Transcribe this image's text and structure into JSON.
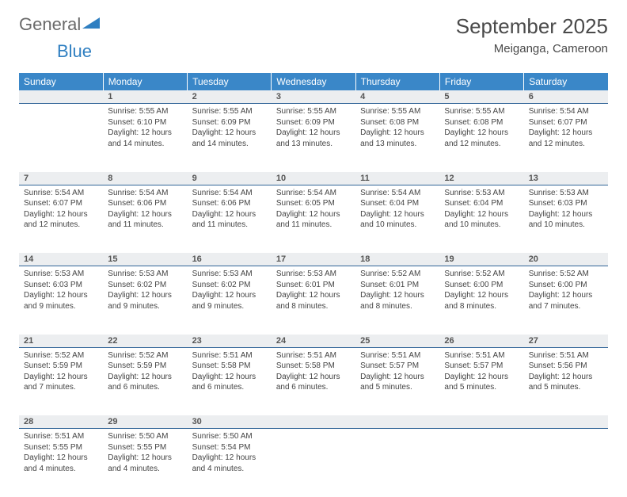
{
  "brand": {
    "general": "General",
    "blue": "Blue"
  },
  "title": "September 2025",
  "subtitle": "Meiganga, Cameroon",
  "colors": {
    "header_bg": "#3a87c8",
    "header_text": "#ffffff",
    "daynum_bg": "#eceef0",
    "daynum_border": "#336699",
    "text": "#444444",
    "title_color": "#4a4a4a",
    "logo_gray": "#6a6a6a",
    "logo_blue": "#2f7fc1"
  },
  "weekdays": [
    "Sunday",
    "Monday",
    "Tuesday",
    "Wednesday",
    "Thursday",
    "Friday",
    "Saturday"
  ],
  "weeks": [
    [
      null,
      {
        "n": "1",
        "sr": "Sunrise: 5:55 AM",
        "ss": "Sunset: 6:10 PM",
        "dl": "Daylight: 12 hours and 14 minutes."
      },
      {
        "n": "2",
        "sr": "Sunrise: 5:55 AM",
        "ss": "Sunset: 6:09 PM",
        "dl": "Daylight: 12 hours and 14 minutes."
      },
      {
        "n": "3",
        "sr": "Sunrise: 5:55 AM",
        "ss": "Sunset: 6:09 PM",
        "dl": "Daylight: 12 hours and 13 minutes."
      },
      {
        "n": "4",
        "sr": "Sunrise: 5:55 AM",
        "ss": "Sunset: 6:08 PM",
        "dl": "Daylight: 12 hours and 13 minutes."
      },
      {
        "n": "5",
        "sr": "Sunrise: 5:55 AM",
        "ss": "Sunset: 6:08 PM",
        "dl": "Daylight: 12 hours and 12 minutes."
      },
      {
        "n": "6",
        "sr": "Sunrise: 5:54 AM",
        "ss": "Sunset: 6:07 PM",
        "dl": "Daylight: 12 hours and 12 minutes."
      }
    ],
    [
      {
        "n": "7",
        "sr": "Sunrise: 5:54 AM",
        "ss": "Sunset: 6:07 PM",
        "dl": "Daylight: 12 hours and 12 minutes."
      },
      {
        "n": "8",
        "sr": "Sunrise: 5:54 AM",
        "ss": "Sunset: 6:06 PM",
        "dl": "Daylight: 12 hours and 11 minutes."
      },
      {
        "n": "9",
        "sr": "Sunrise: 5:54 AM",
        "ss": "Sunset: 6:06 PM",
        "dl": "Daylight: 12 hours and 11 minutes."
      },
      {
        "n": "10",
        "sr": "Sunrise: 5:54 AM",
        "ss": "Sunset: 6:05 PM",
        "dl": "Daylight: 12 hours and 11 minutes."
      },
      {
        "n": "11",
        "sr": "Sunrise: 5:54 AM",
        "ss": "Sunset: 6:04 PM",
        "dl": "Daylight: 12 hours and 10 minutes."
      },
      {
        "n": "12",
        "sr": "Sunrise: 5:53 AM",
        "ss": "Sunset: 6:04 PM",
        "dl": "Daylight: 12 hours and 10 minutes."
      },
      {
        "n": "13",
        "sr": "Sunrise: 5:53 AM",
        "ss": "Sunset: 6:03 PM",
        "dl": "Daylight: 12 hours and 10 minutes."
      }
    ],
    [
      {
        "n": "14",
        "sr": "Sunrise: 5:53 AM",
        "ss": "Sunset: 6:03 PM",
        "dl": "Daylight: 12 hours and 9 minutes."
      },
      {
        "n": "15",
        "sr": "Sunrise: 5:53 AM",
        "ss": "Sunset: 6:02 PM",
        "dl": "Daylight: 12 hours and 9 minutes."
      },
      {
        "n": "16",
        "sr": "Sunrise: 5:53 AM",
        "ss": "Sunset: 6:02 PM",
        "dl": "Daylight: 12 hours and 9 minutes."
      },
      {
        "n": "17",
        "sr": "Sunrise: 5:53 AM",
        "ss": "Sunset: 6:01 PM",
        "dl": "Daylight: 12 hours and 8 minutes."
      },
      {
        "n": "18",
        "sr": "Sunrise: 5:52 AM",
        "ss": "Sunset: 6:01 PM",
        "dl": "Daylight: 12 hours and 8 minutes."
      },
      {
        "n": "19",
        "sr": "Sunrise: 5:52 AM",
        "ss": "Sunset: 6:00 PM",
        "dl": "Daylight: 12 hours and 8 minutes."
      },
      {
        "n": "20",
        "sr": "Sunrise: 5:52 AM",
        "ss": "Sunset: 6:00 PM",
        "dl": "Daylight: 12 hours and 7 minutes."
      }
    ],
    [
      {
        "n": "21",
        "sr": "Sunrise: 5:52 AM",
        "ss": "Sunset: 5:59 PM",
        "dl": "Daylight: 12 hours and 7 minutes."
      },
      {
        "n": "22",
        "sr": "Sunrise: 5:52 AM",
        "ss": "Sunset: 5:59 PM",
        "dl": "Daylight: 12 hours and 6 minutes."
      },
      {
        "n": "23",
        "sr": "Sunrise: 5:51 AM",
        "ss": "Sunset: 5:58 PM",
        "dl": "Daylight: 12 hours and 6 minutes."
      },
      {
        "n": "24",
        "sr": "Sunrise: 5:51 AM",
        "ss": "Sunset: 5:58 PM",
        "dl": "Daylight: 12 hours and 6 minutes."
      },
      {
        "n": "25",
        "sr": "Sunrise: 5:51 AM",
        "ss": "Sunset: 5:57 PM",
        "dl": "Daylight: 12 hours and 5 minutes."
      },
      {
        "n": "26",
        "sr": "Sunrise: 5:51 AM",
        "ss": "Sunset: 5:57 PM",
        "dl": "Daylight: 12 hours and 5 minutes."
      },
      {
        "n": "27",
        "sr": "Sunrise: 5:51 AM",
        "ss": "Sunset: 5:56 PM",
        "dl": "Daylight: 12 hours and 5 minutes."
      }
    ],
    [
      {
        "n": "28",
        "sr": "Sunrise: 5:51 AM",
        "ss": "Sunset: 5:55 PM",
        "dl": "Daylight: 12 hours and 4 minutes."
      },
      {
        "n": "29",
        "sr": "Sunrise: 5:50 AM",
        "ss": "Sunset: 5:55 PM",
        "dl": "Daylight: 12 hours and 4 minutes."
      },
      {
        "n": "30",
        "sr": "Sunrise: 5:50 AM",
        "ss": "Sunset: 5:54 PM",
        "dl": "Daylight: 12 hours and 4 minutes."
      },
      null,
      null,
      null,
      null
    ]
  ]
}
